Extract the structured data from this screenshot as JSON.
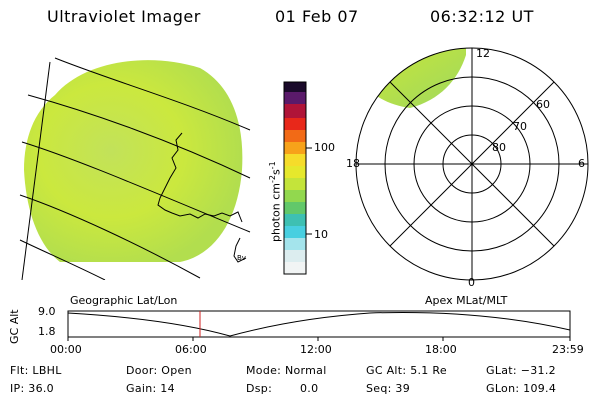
{
  "header": {
    "instrument": "Ultraviolet Imager",
    "date": "01 Feb 07",
    "time": "06:32:12 UT"
  },
  "colorbar": {
    "unit_label": "photon cm",
    "unit_exp1": "-2",
    "unit_mid": "s",
    "unit_exp2": "-1",
    "tick_high": "100",
    "tick_low": "10"
  },
  "polar_plot": {
    "mlt_top": "12",
    "mlt_left": "18",
    "mlt_right": "6",
    "mlt_bottom": "0",
    "lat_labels": [
      "60",
      "70",
      "80"
    ]
  },
  "captions": {
    "left": "Geographic Lat/Lon",
    "right": "Apex MLat/MLT"
  },
  "orbit_plot": {
    "ylabel": "GC Alt",
    "ytick_top": "9.0",
    "ytick_bottom": "1.8",
    "xticks": [
      "00:00",
      "06:00",
      "12:00",
      "18:00",
      "23:59"
    ]
  },
  "info": {
    "flt": "Flt: LBHL",
    "ip": "IP: 36.0",
    "door": "Door: Open",
    "gain": "Gain: 14",
    "mode": "Mode: Normal",
    "dsp_label": "Dsp:",
    "dsp_value": "0.0",
    "gcalt": "GC Alt: 5.1 Re",
    "seq": "Seq: 39",
    "glat": "GLat: −31.2",
    "glon": "GLon: 109.4"
  },
  "colors": {
    "image_fill": "#c8e64a",
    "image_fill_2": "#a8dc50",
    "orbit_marker": "#d02020"
  }
}
